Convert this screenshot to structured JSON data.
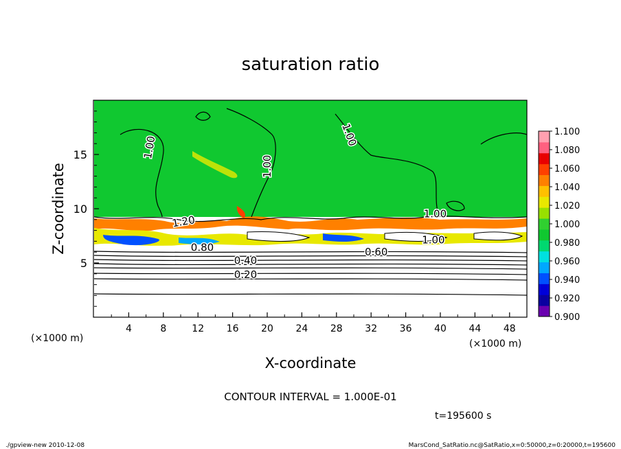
{
  "chart_data": {
    "type": "heatmap",
    "title": "saturation ratio",
    "xlabel": "X-coordinate",
    "ylabel": "Z-coordinate",
    "x_unit": "(×1000 m)",
    "x_unit_right": "(×1000 m)",
    "y_unit": "(×1000 m)",
    "xlim": [
      0,
      50
    ],
    "ylim": [
      0,
      20
    ],
    "xticks": [
      4,
      8,
      12,
      16,
      20,
      24,
      28,
      32,
      36,
      40,
      44,
      48
    ],
    "yticks": [
      5,
      10,
      15
    ],
    "colorbar": {
      "min": 0.9,
      "max": 1.1,
      "ticks": [
        "0.900",
        "0.920",
        "0.940",
        "0.960",
        "0.980",
        "1.000",
        "1.020",
        "1.040",
        "1.060",
        "1.080",
        "1.100"
      ],
      "colors": [
        "#6a00b0",
        "#0a00a0",
        "#0000d8",
        "#0050ff",
        "#00a8ff",
        "#00e0e0",
        "#00d870",
        "#10c830",
        "#30d030",
        "#98e000",
        "#e8e800",
        "#ffc000",
        "#ff8000",
        "#ff4000",
        "#e80000",
        "#ff6080",
        "#ffa0b0"
      ]
    },
    "contour_labels": [
      {
        "text": "1.00",
        "x": 6.8,
        "z": 15.6,
        "rot": -80
      },
      {
        "text": "1.00",
        "x": 20.4,
        "z": 13.9,
        "rot": -90
      },
      {
        "text": "1.00",
        "x": 29.1,
        "z": 16.7,
        "rot": 70
      },
      {
        "text": "1.00",
        "x": 39.4,
        "z": 9.2,
        "rot": 0
      },
      {
        "text": "1.00",
        "x": 39.2,
        "z": 6.8,
        "rot": 0
      },
      {
        "text": "1.20",
        "x": 10.4,
        "z": 8.5,
        "rot": -10
      },
      {
        "text": "0.80",
        "x": 12.5,
        "z": 6.1,
        "rot": 0
      },
      {
        "text": "0.60",
        "x": 32.6,
        "z": 5.7,
        "rot": 0
      },
      {
        "text": "0.40",
        "x": 17.5,
        "z": 4.9,
        "rot": 0
      },
      {
        "text": "0.20",
        "x": 17.5,
        "z": 3.6,
        "rot": 0
      }
    ],
    "contour_interval": "CONTOUR INTERVAL = 1.000E-01",
    "time": "t=195600 s"
  },
  "footer": {
    "left": "./gpview-new  2010-12-08",
    "right": "MarsCond_SatRatio.nc@SatRatio,x=0:50000,z=0:20000,t=195600"
  }
}
